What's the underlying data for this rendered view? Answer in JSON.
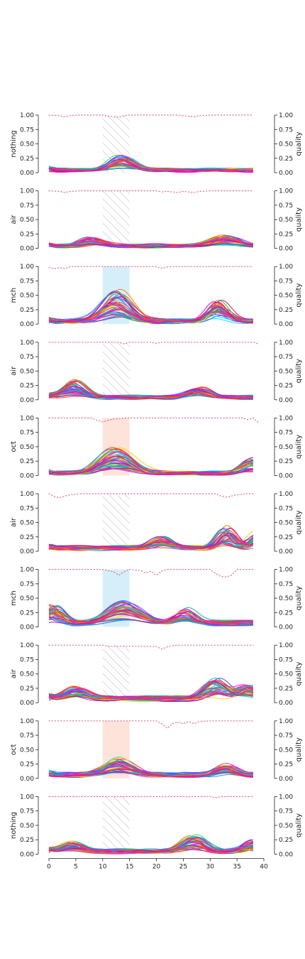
{
  "chart_data": {
    "type": "line",
    "layout": "10 stacked panels sharing x-axis",
    "x_ticks": [
      0,
      5,
      10,
      15,
      20,
      25,
      30,
      35,
      40
    ],
    "xlim": [
      0,
      40
    ],
    "ylim": [
      0,
      1
    ],
    "y_ticks": [
      "0.00",
      "0.25",
      "0.50",
      "0.75",
      "1.00"
    ],
    "right_ylabel": "quality",
    "shaded_window": [
      10,
      15
    ],
    "region_colors": {
      "hatch": "#bdbdbd",
      "mch": "#d6eefa",
      "oct": "#fde3d9"
    },
    "quality_color": "#e06c8c",
    "line_palette": [
      "#ff2a6d",
      "#ff00cc",
      "#3355ff",
      "#00e5ff",
      "#34e05a",
      "#ffd400",
      "#ff7a00",
      "#9b30ff",
      "#00b894",
      "#1e90ff",
      "#ff4500",
      "#c71585"
    ],
    "panels": [
      {
        "label": "nothing",
        "region": "hatch",
        "quality": [
          [
            0,
            1.0
          ],
          [
            2,
            0.99
          ],
          [
            3,
            0.97
          ],
          [
            4,
            0.99
          ],
          [
            5,
            1.0
          ],
          [
            10,
            1.0
          ],
          [
            11,
            0.98
          ],
          [
            12,
            0.97
          ],
          [
            13,
            0.96
          ],
          [
            14,
            0.99
          ],
          [
            15,
            1.0
          ],
          [
            20,
            1.0
          ],
          [
            24,
            1.0
          ],
          [
            25,
            0.99
          ],
          [
            26,
            0.98
          ],
          [
            27,
            0.97
          ],
          [
            28,
            0.99
          ],
          [
            30,
            1.0
          ],
          [
            38,
            1.0
          ]
        ],
        "baseline": 0.05,
        "bumps": [
          [
            13.5,
            0.25,
            2.0
          ]
        ]
      },
      {
        "label": "air",
        "region": "hatch",
        "quality": [
          [
            0,
            1.0
          ],
          [
            2,
            0.99
          ],
          [
            3,
            0.97
          ],
          [
            4,
            0.99
          ],
          [
            6,
            1.0
          ],
          [
            20,
            1.0
          ],
          [
            21,
            0.98
          ],
          [
            22,
            0.99
          ],
          [
            24,
            0.97
          ],
          [
            25,
            0.99
          ],
          [
            26,
            0.98
          ],
          [
            27,
            0.97
          ],
          [
            28,
            0.99
          ],
          [
            30,
            1.0
          ],
          [
            38,
            1.0
          ]
        ],
        "baseline": 0.05,
        "bumps": [
          [
            8,
            0.14,
            2.0
          ],
          [
            33,
            0.17,
            2.5
          ]
        ]
      },
      {
        "label": "mch",
        "region": "mch",
        "quality": [
          [
            0,
            0.98
          ],
          [
            1,
            0.96
          ],
          [
            2,
            0.98
          ],
          [
            3,
            0.96
          ],
          [
            4,
            1.0
          ],
          [
            20,
            1.0
          ],
          [
            21,
            0.97
          ],
          [
            22,
            0.99
          ],
          [
            23,
            1.0
          ],
          [
            38,
            1.0
          ]
        ],
        "baseline": 0.06,
        "bumps": [
          [
            12.5,
            0.55,
            2.5
          ],
          [
            31.5,
            0.4,
            1.8
          ]
        ]
      },
      {
        "label": "air",
        "region": "hatch",
        "quality": [
          [
            0,
            1.0
          ],
          [
            13,
            1.0
          ],
          [
            14,
            0.97
          ],
          [
            15,
            1.0
          ],
          [
            19,
            1.0
          ],
          [
            20,
            0.98
          ],
          [
            21,
            1.0
          ],
          [
            38,
            1.0
          ],
          [
            39,
            0.97
          ]
        ],
        "baseline": 0.05,
        "bumps": [
          [
            4.5,
            0.3,
            2.0
          ],
          [
            28,
            0.2,
            2.0
          ]
        ]
      },
      {
        "label": "oct",
        "region": "oct",
        "quality": [
          [
            0,
            1.0
          ],
          [
            8,
            1.0
          ],
          [
            9,
            0.96
          ],
          [
            10,
            0.93
          ],
          [
            11,
            0.96
          ],
          [
            12,
            0.98
          ],
          [
            14,
            1.0
          ],
          [
            36,
            1.0
          ],
          [
            37,
            0.97
          ],
          [
            38,
            1.0
          ],
          [
            39,
            0.92
          ]
        ],
        "baseline": 0.05,
        "bumps": [
          [
            12.5,
            0.45,
            3.0
          ],
          [
            38,
            0.25,
            1.8
          ]
        ]
      },
      {
        "label": "air",
        "region": "hatch",
        "quality": [
          [
            0,
            1.0
          ],
          [
            1,
            0.95
          ],
          [
            2,
            0.93
          ],
          [
            3,
            0.96
          ],
          [
            4,
            0.98
          ],
          [
            6,
            1.0
          ],
          [
            31,
            1.0
          ],
          [
            32,
            0.96
          ],
          [
            33,
            0.94
          ],
          [
            34,
            0.96
          ],
          [
            35,
            0.98
          ],
          [
            37,
            1.0
          ],
          [
            38,
            1.0
          ]
        ],
        "baseline": 0.07,
        "bumps": [
          [
            21,
            0.2,
            2.0
          ],
          [
            33,
            0.38,
            1.5
          ],
          [
            39,
            0.28,
            1.5
          ]
        ]
      },
      {
        "label": "mch",
        "region": "mch",
        "quality": [
          [
            0,
            1.0
          ],
          [
            10,
            1.0
          ],
          [
            12,
            0.96
          ],
          [
            13,
            0.9
          ],
          [
            14,
            0.96
          ],
          [
            15,
            1.0
          ],
          [
            17,
            0.98
          ],
          [
            18,
            0.94
          ],
          [
            19,
            0.97
          ],
          [
            20,
            0.9
          ],
          [
            21,
            0.97
          ],
          [
            22,
            1.0
          ],
          [
            30,
            1.0
          ],
          [
            31,
            0.93
          ],
          [
            32,
            0.88
          ],
          [
            33,
            0.87
          ],
          [
            34,
            0.9
          ],
          [
            35,
            1.0
          ],
          [
            38,
            1.0
          ]
        ],
        "baseline": 0.08,
        "bumps": [
          [
            14,
            0.38,
            3.0
          ],
          [
            25.5,
            0.27,
            1.8
          ],
          [
            1,
            0.3,
            1.5
          ]
        ]
      },
      {
        "label": "air",
        "region": "hatch",
        "quality": [
          [
            0,
            1.0
          ],
          [
            10,
            1.0
          ],
          [
            11,
            0.98
          ],
          [
            20,
            0.98
          ],
          [
            21,
            0.93
          ],
          [
            22,
            0.97
          ],
          [
            23,
            0.99
          ],
          [
            24,
            1.0
          ],
          [
            38,
            1.0
          ]
        ],
        "baseline": 0.08,
        "bumps": [
          [
            31,
            0.35,
            2.0
          ],
          [
            37,
            0.22,
            1.8
          ],
          [
            5,
            0.2,
            2.0
          ]
        ]
      },
      {
        "label": "oct",
        "region": "oct",
        "quality": [
          [
            0,
            1.0
          ],
          [
            20,
            1.0
          ],
          [
            21,
            0.95
          ],
          [
            22,
            0.87
          ],
          [
            23,
            0.95
          ],
          [
            24,
            0.98
          ],
          [
            25,
            0.95
          ],
          [
            26,
            0.99
          ],
          [
            27,
            0.95
          ],
          [
            28,
            0.99
          ],
          [
            30,
            1.0
          ],
          [
            38,
            1.0
          ]
        ],
        "baseline": 0.07,
        "bumps": [
          [
            13,
            0.3,
            2.5
          ],
          [
            33,
            0.2,
            1.8
          ]
        ]
      },
      {
        "label": "nothing",
        "region": "hatch",
        "quality": [
          [
            0,
            1.0
          ],
          [
            30,
            1.0
          ],
          [
            31,
            0.98
          ],
          [
            32,
            1.0
          ],
          [
            38,
            1.0
          ]
        ],
        "baseline": 0.06,
        "bumps": [
          [
            27,
            0.27,
            2.0
          ],
          [
            4.5,
            0.15,
            2.0
          ],
          [
            38,
            0.2,
            1.5
          ]
        ]
      }
    ]
  }
}
